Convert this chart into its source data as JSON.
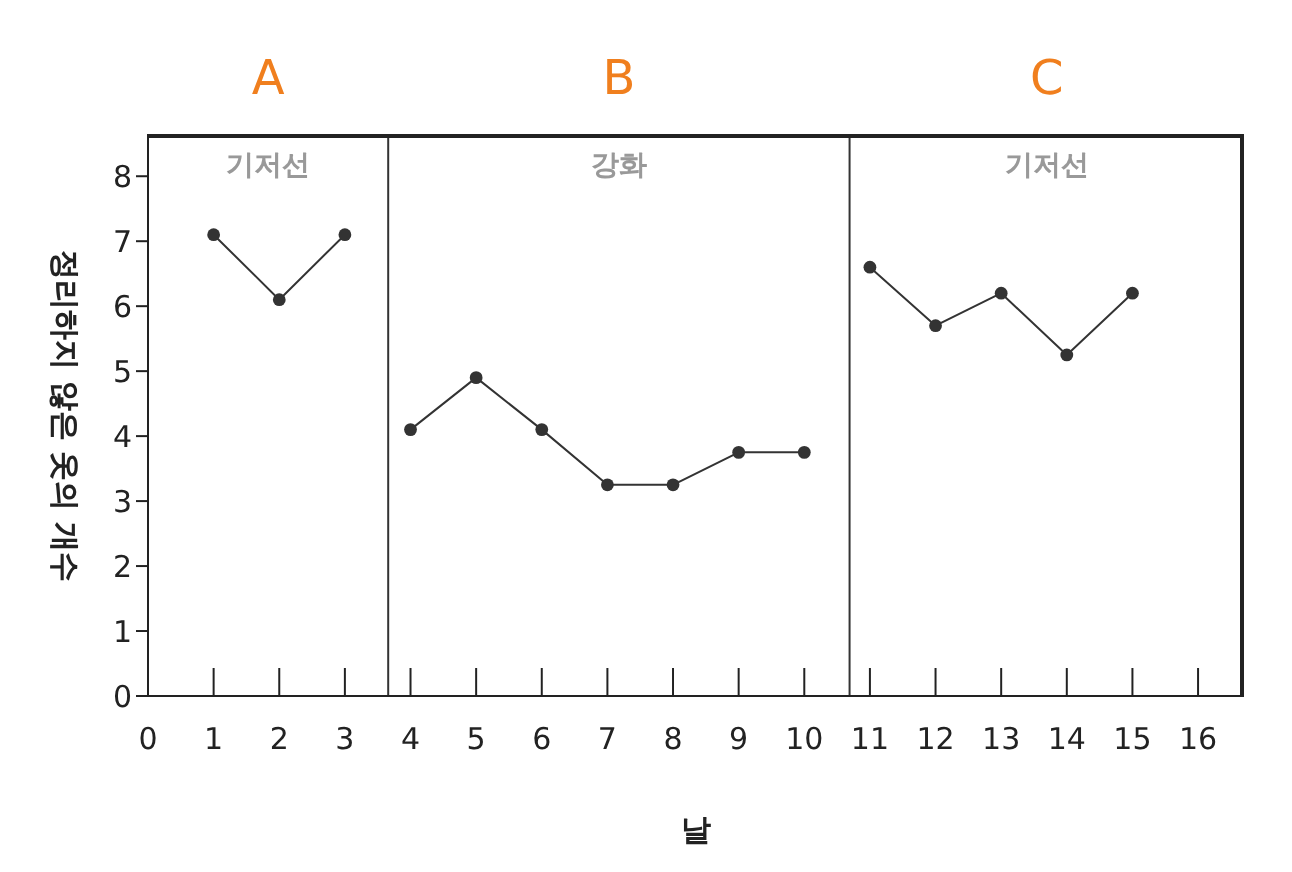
{
  "chart_data": {
    "type": "line",
    "xlabel": "날",
    "ylabel": "정리하지 않은 옷의 개수",
    "xlim": [
      0,
      16.7
    ],
    "xticks": [
      0,
      1,
      2,
      3,
      4,
      5,
      6,
      7,
      8,
      9,
      10,
      11,
      12,
      13,
      14,
      15,
      16
    ],
    "ylim": [
      0,
      8.65
    ],
    "yticks": [
      0,
      1,
      2,
      3,
      4,
      5,
      6,
      7,
      8
    ],
    "grid": false,
    "legend": false,
    "marker": "circle",
    "line_style": "solid",
    "series": [
      {
        "color": "#333333",
        "x": [
          1,
          2,
          3
        ],
        "values": [
          7.1,
          6.1,
          7.1
        ]
      },
      {
        "color": "#333333",
        "x": [
          4,
          5,
          6,
          7,
          8,
          9,
          10
        ],
        "values": [
          4.1,
          4.9,
          4.1,
          3.25,
          3.25,
          3.75,
          3.75
        ]
      },
      {
        "color": "#333333",
        "x": [
          11,
          12,
          13,
          14,
          15
        ],
        "values": [
          6.6,
          5.7,
          6.2,
          5.25,
          6.2
        ]
      }
    ],
    "ref_lines": [
      {
        "axis": "x",
        "value": 3.66,
        "color": "#333333"
      },
      {
        "axis": "x",
        "value": 10.69,
        "color": "#333333"
      }
    ],
    "annotations": [
      "A",
      "B",
      "C",
      "기저선",
      "강화",
      "기저선"
    ]
  }
}
